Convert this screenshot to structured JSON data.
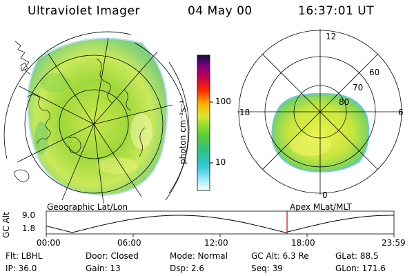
{
  "header": {
    "title": "Ultraviolet Imager",
    "date": "04 May 00",
    "time": "16:37:01 UT"
  },
  "colorbar": {
    "units": "photon cm⁻²s⁻¹",
    "ticks": [
      "100",
      "10"
    ]
  },
  "left_panel": {
    "caption": "Geographic Lat/Lon"
  },
  "right_panel": {
    "caption": "Apex MLat/MLT",
    "mlt_labels": [
      "12",
      "18",
      "6",
      "0"
    ],
    "lat_labels": [
      "60",
      "70",
      "80"
    ]
  },
  "altitude_plot": {
    "ylabel": "GC Alt",
    "yticks": [
      "9.0",
      "1.8"
    ],
    "xticks": [
      "00:00",
      "06:00",
      "12:00",
      "18:00",
      "23:59"
    ],
    "current_time_hours": 16.62,
    "marker_color": "#cc0000"
  },
  "info": {
    "row1": {
      "flt": "Flt: LBHL",
      "door": "Door: Closed",
      "mode": "Mode: Normal",
      "gcalt": "GC Alt: 6.3 Re",
      "glat": "GLat:  88.5"
    },
    "row2": {
      "ip": "IP: 36.0",
      "gain": "Gain: 13",
      "dsp": "Dsp:     2.6",
      "seq": "Seq: 39",
      "glon": "GLon: 171.6"
    }
  }
}
